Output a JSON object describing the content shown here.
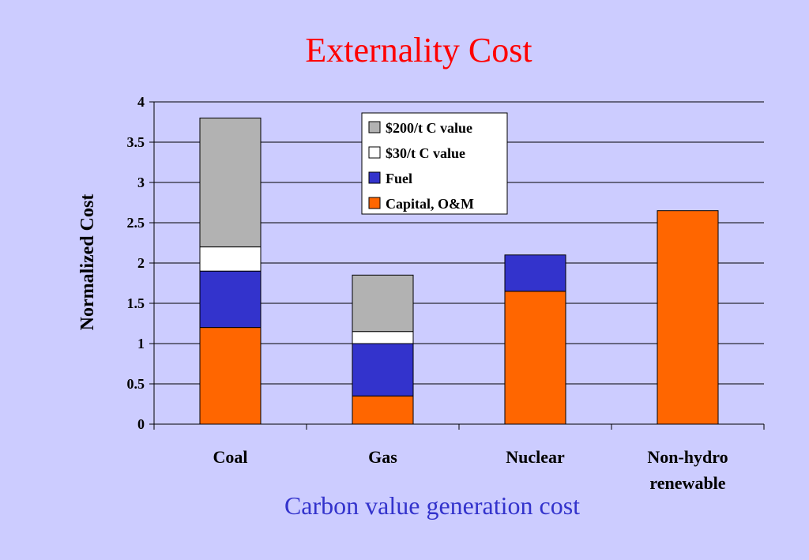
{
  "slide": {
    "title": "Externality Cost",
    "subtitle": "Carbon value generation cost"
  },
  "colors": {
    "background": "#CCCCFF",
    "title": "#FF0000",
    "subtitle": "#3333CC"
  },
  "chart_data": {
    "type": "bar",
    "stacked": true,
    "ylabel": "Normalized Cost",
    "ylim": [
      0,
      4
    ],
    "yticks": [
      "0",
      "0.5",
      "1",
      "1.5",
      "2",
      "2.5",
      "3",
      "3.5",
      "4"
    ],
    "grid": true,
    "legend_position": "top-center",
    "categories": [
      [
        "Coal"
      ],
      [
        "Gas"
      ],
      [
        "Nuclear"
      ],
      [
        "Non-hydro",
        "renewable"
      ]
    ],
    "series": [
      {
        "name": "Capital, O&M",
        "color": "#FF6600",
        "values": [
          1.2,
          0.35,
          1.65,
          2.65
        ]
      },
      {
        "name": "Fuel",
        "color": "#3333CC",
        "values": [
          0.7,
          0.65,
          0.45,
          0
        ]
      },
      {
        "name": "$30/t C value",
        "color": "#FFFFFF",
        "values": [
          0.3,
          0.15,
          0,
          0
        ]
      },
      {
        "name": "$200/t C value",
        "color": "#B2B2B2",
        "values": [
          1.6,
          0.7,
          0,
          0
        ]
      }
    ]
  }
}
